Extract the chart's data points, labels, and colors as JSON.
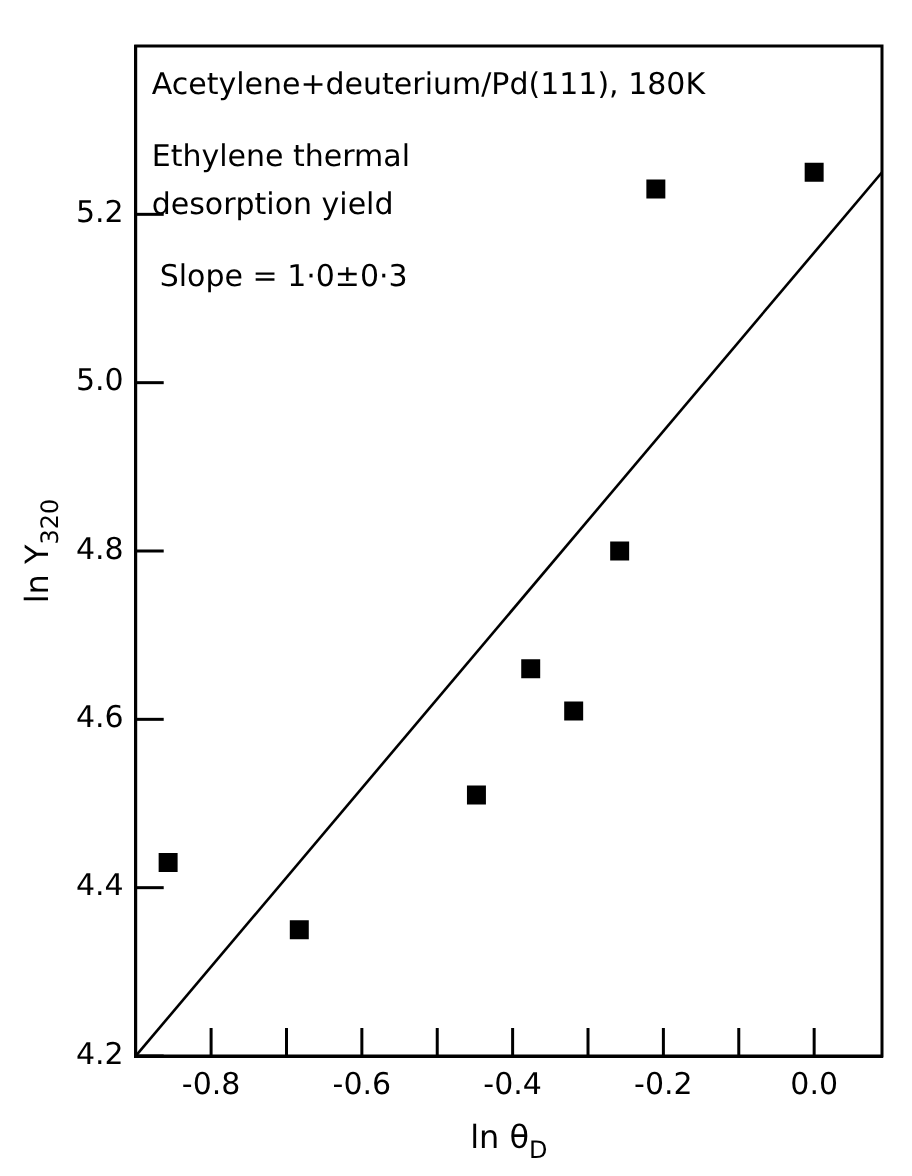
{
  "chart_data": {
    "type": "scatter",
    "xlabel": "ln θ$_{D}$",
    "ylabel": "ln Y$_{320}$",
    "annotations": [
      "Acetylene+deuterium/Pd(111), 180K",
      "Ethylene thermal\ndesorption yield",
      "Slope = 1·0±0·3"
    ],
    "series": [
      {
        "type": "scatter",
        "color": "#000000",
        "marker": "square",
        "x": [
          -0.857,
          -0.683,
          -0.448,
          -0.376,
          -0.319,
          -0.258,
          -0.21,
          0.0
        ],
        "values": [
          4.43,
          4.35,
          4.51,
          4.66,
          4.61,
          4.8,
          5.23,
          5.25
        ]
      },
      {
        "type": "line",
        "color": "#000000",
        "marker": "none",
        "line_style": "solid",
        "x": [
          -0.9,
          0.09
        ],
        "values": [
          4.2,
          5.25
        ]
      }
    ],
    "xlim": [
      -0.9,
      0.09
    ],
    "ylim": [
      4.2,
      5.4
    ],
    "xticks": [
      -0.8,
      {
        "value": -0.7,
        "label": null
      },
      -0.6,
      {
        "value": -0.5,
        "label": null
      },
      -0.4,
      {
        "value": -0.3,
        "label": null
      },
      -0.2,
      {
        "value": -0.1,
        "label": null
      },
      {
        "value": 0,
        "label": "0.0"
      }
    ],
    "yticks": [
      4.2,
      4.4,
      4.6,
      4.8,
      {
        "value": 5,
        "label": "5.0"
      },
      5.2
    ],
    "grid": false,
    "legend": false
  }
}
